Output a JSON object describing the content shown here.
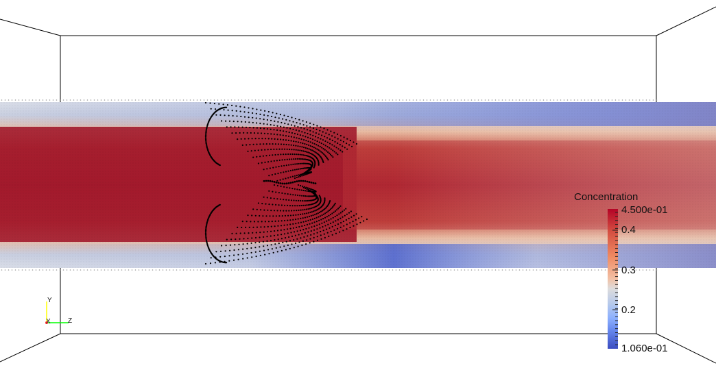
{
  "scalar_bar": {
    "title": "Concentration",
    "max_label": "4.500e-01",
    "tick_04": "0.4",
    "tick_03": "0.3",
    "tick_02": "0.2",
    "min_label": "1.060e-01",
    "range": [
      0.106,
      0.45
    ],
    "colors": {
      "high": "#b40426",
      "mid": "#dddcdc",
      "low": "#3b4cc0"
    }
  },
  "orientation_axes": {
    "y_label": "Y",
    "x_label": "X",
    "z_label": "Z",
    "y_color": "#ffff00",
    "z_color": "#00ff00"
  }
}
